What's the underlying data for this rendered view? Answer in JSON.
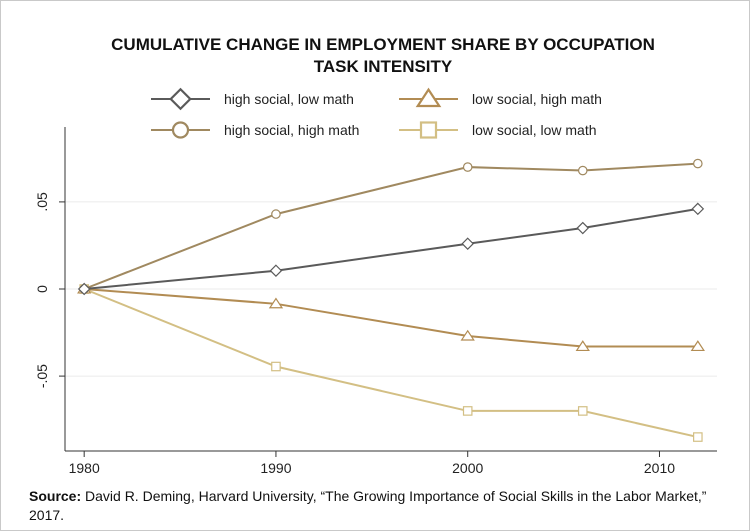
{
  "chart_data": {
    "type": "line",
    "title": "CUMULATIVE CHANGE IN EMPLOYMENT SHARE BY OCCUPATION TASK INTENSITY",
    "title_lines": [
      "CUMULATIVE CHANGE IN EMPLOYMENT SHARE BY OCCUPATION",
      "TASK INTENSITY"
    ],
    "xlabel": "",
    "ylabel": "",
    "x": [
      1980,
      1990,
      2000,
      2006,
      2012
    ],
    "xlim": [
      1979,
      2013
    ],
    "ylim": [
      -0.093,
      0.093
    ],
    "x_ticks": [
      1980,
      1990,
      2000,
      2010
    ],
    "x_tick_labels": [
      "1980",
      "1990",
      "2000",
      "2010"
    ],
    "y_ticks": [
      0.05,
      0,
      -0.05
    ],
    "y_tick_labels": [
      ".05",
      "0",
      "-.05"
    ],
    "grid": true,
    "legend_position": "top",
    "series": [
      {
        "name": "high social, low math",
        "marker": "diamond",
        "color": "#5a5a5a",
        "values": [
          0,
          0.0105,
          0.026,
          0.035,
          0.046
        ]
      },
      {
        "name": "high social, high math",
        "marker": "circle",
        "color": "#a08960",
        "values": [
          0,
          0.043,
          0.07,
          0.068,
          0.072
        ]
      },
      {
        "name": "low social, high math",
        "marker": "triangle",
        "color": "#b28c53",
        "values": [
          0,
          -0.0085,
          -0.027,
          -0.033,
          -0.033
        ]
      },
      {
        "name": "low social, low math",
        "marker": "square",
        "color": "#d3bf84",
        "values": [
          0,
          -0.0445,
          -0.07,
          -0.07,
          -0.085
        ]
      }
    ]
  },
  "source": {
    "label": "Source:",
    "text": "David R. Deming, Harvard University, “The Growing Importance of Social Skills in the Labor Market,” 2017."
  }
}
